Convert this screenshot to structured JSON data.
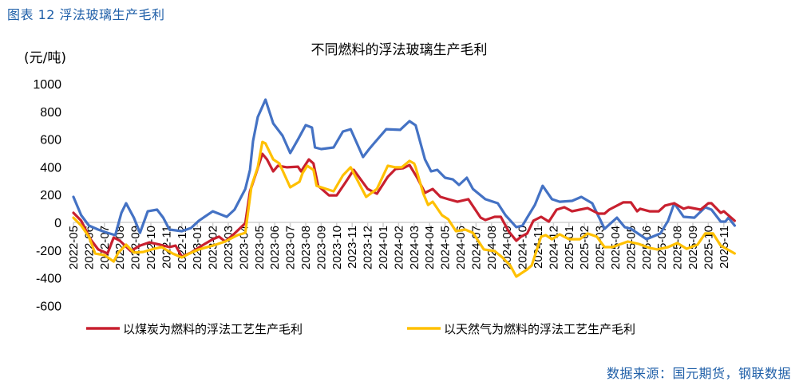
{
  "header": {
    "figure_label": "图表 12 浮法玻璃生产毛利"
  },
  "source": "数据来源：国元期货，钢联数据",
  "chart_data": {
    "type": "line",
    "title": "不同燃料的浮法玻璃生产毛利",
    "ylabel": "(元/吨)",
    "xlabel": "",
    "ylim": [
      -600,
      1000
    ],
    "yticks": [
      1000,
      800,
      600,
      400,
      200,
      0,
      -200,
      -400,
      -600
    ],
    "x_unit_note": "x = months elapsed since 2022-05",
    "xlim": [
      0,
      42.7
    ],
    "categories": [
      "2022-05",
      "2022-06",
      "2022-07",
      "2022-08",
      "2022-09",
      "2022-10",
      "2022-11",
      "2022-12",
      "2023-01",
      "2023-02",
      "2023-03",
      "2023-04",
      "2023-05",
      "2023-06",
      "2023-07",
      "2023-08",
      "2023-09",
      "2023-10",
      "2023-11",
      "2023-12",
      "2024-01",
      "2024-02",
      "2024-03",
      "2024-04",
      "2024-05",
      "2024-06",
      "2024-07",
      "2024-08",
      "2024-09",
      "2024-10",
      "2024-11",
      "2024-12",
      "2025-01",
      "2025-02",
      "2025-03",
      "2025-04",
      "2025-05",
      "2025-06",
      "2025-07",
      "2025-08",
      "2025-09",
      "2025-10",
      "2025-11"
    ],
    "grid": false,
    "legend_position": "bottom",
    "series": [
      {
        "name": "以煤炭为燃料的浮法工艺生产毛利",
        "color": "#c8202f",
        "in_legend": true,
        "points": [
          [
            0,
            69
          ],
          [
            0.5,
            12
          ],
          [
            1.1,
            -121
          ],
          [
            1.6,
            -195
          ],
          [
            2.2,
            -224
          ],
          [
            2.6,
            -109
          ],
          [
            3.0,
            -132
          ],
          [
            3.7,
            -207
          ],
          [
            4.3,
            -167
          ],
          [
            4.9,
            -144
          ],
          [
            5.6,
            -161
          ],
          [
            6.2,
            -178
          ],
          [
            6.6,
            -167
          ],
          [
            7.0,
            -247
          ],
          [
            7.6,
            -218
          ],
          [
            8.3,
            -167
          ],
          [
            9.0,
            -121
          ],
          [
            9.4,
            -103
          ],
          [
            9.8,
            -138
          ],
          [
            10.4,
            -80
          ],
          [
            11.1,
            -6
          ],
          [
            11.4,
            224
          ],
          [
            11.8,
            356
          ],
          [
            12.2,
            494
          ],
          [
            12.5,
            454
          ],
          [
            12.9,
            368
          ],
          [
            13.2,
            408
          ],
          [
            13.8,
            397
          ],
          [
            14.5,
            402
          ],
          [
            14.7,
            368
          ],
          [
            15.2,
            454
          ],
          [
            15.5,
            425
          ],
          [
            15.8,
            264
          ],
          [
            16.5,
            195
          ],
          [
            17.0,
            195
          ],
          [
            17.6,
            293
          ],
          [
            18.1,
            379
          ],
          [
            19.0,
            241
          ],
          [
            19.6,
            207
          ],
          [
            20.3,
            328
          ],
          [
            20.8,
            385
          ],
          [
            21.3,
            391
          ],
          [
            21.7,
            414
          ],
          [
            22.2,
            322
          ],
          [
            22.7,
            213
          ],
          [
            23.2,
            241
          ],
          [
            23.7,
            184
          ],
          [
            24.2,
            167
          ],
          [
            24.8,
            149
          ],
          [
            25.5,
            167
          ],
          [
            26.3,
            34
          ],
          [
            26.6,
            17
          ],
          [
            27.2,
            40
          ],
          [
            27.6,
            40
          ],
          [
            28.1,
            -63
          ],
          [
            28.6,
            -132
          ],
          [
            28.9,
            -103
          ],
          [
            29.3,
            -80
          ],
          [
            29.7,
            12
          ],
          [
            30.2,
            40
          ],
          [
            30.7,
            6
          ],
          [
            31.2,
            92
          ],
          [
            31.7,
            109
          ],
          [
            32.2,
            80
          ],
          [
            32.7,
            92
          ],
          [
            33.2,
            103
          ],
          [
            33.9,
            63
          ],
          [
            34.3,
            63
          ],
          [
            34.6,
            92
          ],
          [
            35.5,
            144
          ],
          [
            36.0,
            144
          ],
          [
            36.4,
            80
          ],
          [
            36.6,
            98
          ],
          [
            37.2,
            80
          ],
          [
            37.8,
            80
          ],
          [
            38.2,
            121
          ],
          [
            38.8,
            138
          ],
          [
            39.4,
            98
          ],
          [
            39.7,
            109
          ],
          [
            40.5,
            92
          ],
          [
            41.0,
            138
          ],
          [
            41.2,
            138
          ],
          [
            41.8,
            69
          ],
          [
            42.0,
            80
          ],
          [
            42.7,
            12
          ]
        ]
      },
      {
        "name": "以天然气为燃料的浮法工艺生产毛利",
        "color": "#ffc000",
        "in_legend": true,
        "points": [
          [
            0,
            34
          ],
          [
            0.5,
            -23
          ],
          [
            1.0,
            -103
          ],
          [
            1.4,
            -224
          ],
          [
            2.0,
            -236
          ],
          [
            2.6,
            -282
          ],
          [
            2.9,
            -218
          ],
          [
            3.4,
            -161
          ],
          [
            3.9,
            -218
          ],
          [
            4.5,
            -213
          ],
          [
            5.2,
            -190
          ],
          [
            5.7,
            -178
          ],
          [
            6.4,
            -224
          ],
          [
            7.0,
            -253
          ],
          [
            7.5,
            -224
          ],
          [
            8.1,
            -195
          ],
          [
            9.0,
            -167
          ],
          [
            9.8,
            -138
          ],
          [
            10.6,
            -92
          ],
          [
            11.1,
            -75
          ],
          [
            11.5,
            264
          ],
          [
            11.9,
            397
          ],
          [
            12.2,
            580
          ],
          [
            12.4,
            569
          ],
          [
            12.9,
            454
          ],
          [
            13.3,
            425
          ],
          [
            14.0,
            253
          ],
          [
            14.6,
            293
          ],
          [
            14.8,
            356
          ],
          [
            15.1,
            408
          ],
          [
            15.5,
            379
          ],
          [
            15.7,
            264
          ],
          [
            16.8,
            224
          ],
          [
            17.4,
            339
          ],
          [
            17.9,
            397
          ],
          [
            18.9,
            184
          ],
          [
            19.6,
            241
          ],
          [
            20.3,
            408
          ],
          [
            20.8,
            397
          ],
          [
            21.2,
            397
          ],
          [
            21.7,
            443
          ],
          [
            22.0,
            425
          ],
          [
            22.1,
            397
          ],
          [
            22.6,
            207
          ],
          [
            22.9,
            126
          ],
          [
            23.2,
            149
          ],
          [
            23.8,
            52
          ],
          [
            24.2,
            23
          ],
          [
            24.7,
            -63
          ],
          [
            25.3,
            -52
          ],
          [
            25.8,
            -75
          ],
          [
            26.5,
            -195
          ],
          [
            27.2,
            -207
          ],
          [
            27.7,
            -253
          ],
          [
            28.2,
            -310
          ],
          [
            28.6,
            -391
          ],
          [
            29.3,
            -339
          ],
          [
            29.6,
            -310
          ],
          [
            30.2,
            -103
          ],
          [
            30.5,
            -92
          ],
          [
            30.9,
            -121
          ],
          [
            31.4,
            -86
          ],
          [
            32.0,
            -121
          ],
          [
            32.7,
            -121
          ],
          [
            33.2,
            -80
          ],
          [
            33.8,
            -103
          ],
          [
            34.3,
            -178
          ],
          [
            34.8,
            -178
          ],
          [
            35.8,
            -138
          ],
          [
            36.5,
            -155
          ],
          [
            37.2,
            -184
          ],
          [
            37.7,
            -195
          ],
          [
            38.4,
            -178
          ],
          [
            39.0,
            -149
          ],
          [
            39.6,
            -190
          ],
          [
            40.3,
            -161
          ],
          [
            40.8,
            -80
          ],
          [
            41.3,
            -80
          ],
          [
            41.8,
            -167
          ],
          [
            42.7,
            -224
          ]
        ]
      },
      {
        "name": "",
        "color": "#4472c4",
        "in_legend": false,
        "points": [
          [
            0,
            184
          ],
          [
            0.5,
            52
          ],
          [
            1.0,
            -23
          ],
          [
            1.6,
            -52
          ],
          [
            2.2,
            -75
          ],
          [
            2.7,
            -92
          ],
          [
            3.1,
            69
          ],
          [
            3.4,
            138
          ],
          [
            3.9,
            34
          ],
          [
            4.3,
            -75
          ],
          [
            4.8,
            80
          ],
          [
            5.4,
            92
          ],
          [
            5.8,
            34
          ],
          [
            6.2,
            -52
          ],
          [
            7.0,
            -63
          ],
          [
            7.6,
            -40
          ],
          [
            8.1,
            12
          ],
          [
            9.0,
            80
          ],
          [
            9.9,
            40
          ],
          [
            10.4,
            92
          ],
          [
            11.1,
            241
          ],
          [
            11.4,
            379
          ],
          [
            11.6,
            586
          ],
          [
            11.9,
            759
          ],
          [
            12.4,
            885
          ],
          [
            12.9,
            713
          ],
          [
            13.5,
            626
          ],
          [
            14.0,
            500
          ],
          [
            14.5,
            598
          ],
          [
            15.0,
            701
          ],
          [
            15.4,
            684
          ],
          [
            15.6,
            540
          ],
          [
            16.0,
            529
          ],
          [
            16.8,
            540
          ],
          [
            17.4,
            655
          ],
          [
            17.9,
            672
          ],
          [
            18.7,
            471
          ],
          [
            19.1,
            529
          ],
          [
            19.4,
            569
          ],
          [
            20.2,
            672
          ],
          [
            21.1,
            667
          ],
          [
            21.7,
            730
          ],
          [
            22.1,
            700
          ],
          [
            22.7,
            454
          ],
          [
            23.1,
            368
          ],
          [
            23.5,
            379
          ],
          [
            24.0,
            322
          ],
          [
            24.5,
            310
          ],
          [
            24.9,
            270
          ],
          [
            25.4,
            322
          ],
          [
            25.8,
            241
          ],
          [
            26.6,
            167
          ],
          [
            27.4,
            138
          ],
          [
            27.9,
            52
          ],
          [
            28.6,
            -34
          ],
          [
            29.0,
            -23
          ],
          [
            29.3,
            34
          ],
          [
            29.8,
            126
          ],
          [
            30.3,
            264
          ],
          [
            30.9,
            167
          ],
          [
            31.4,
            149
          ],
          [
            32.2,
            155
          ],
          [
            32.8,
            184
          ],
          [
            33.5,
            138
          ],
          [
            34.3,
            -46
          ],
          [
            35.1,
            34
          ],
          [
            35.6,
            -34
          ],
          [
            36.0,
            -46
          ],
          [
            37.0,
            -121
          ],
          [
            37.9,
            -80
          ],
          [
            38.4,
            12
          ],
          [
            38.8,
            138
          ],
          [
            39.4,
            40
          ],
          [
            40.1,
            34
          ],
          [
            40.8,
            109
          ],
          [
            41.2,
            92
          ],
          [
            41.8,
            6
          ],
          [
            42.1,
            6
          ],
          [
            42.3,
            34
          ],
          [
            42.7,
            -23
          ]
        ]
      }
    ]
  }
}
